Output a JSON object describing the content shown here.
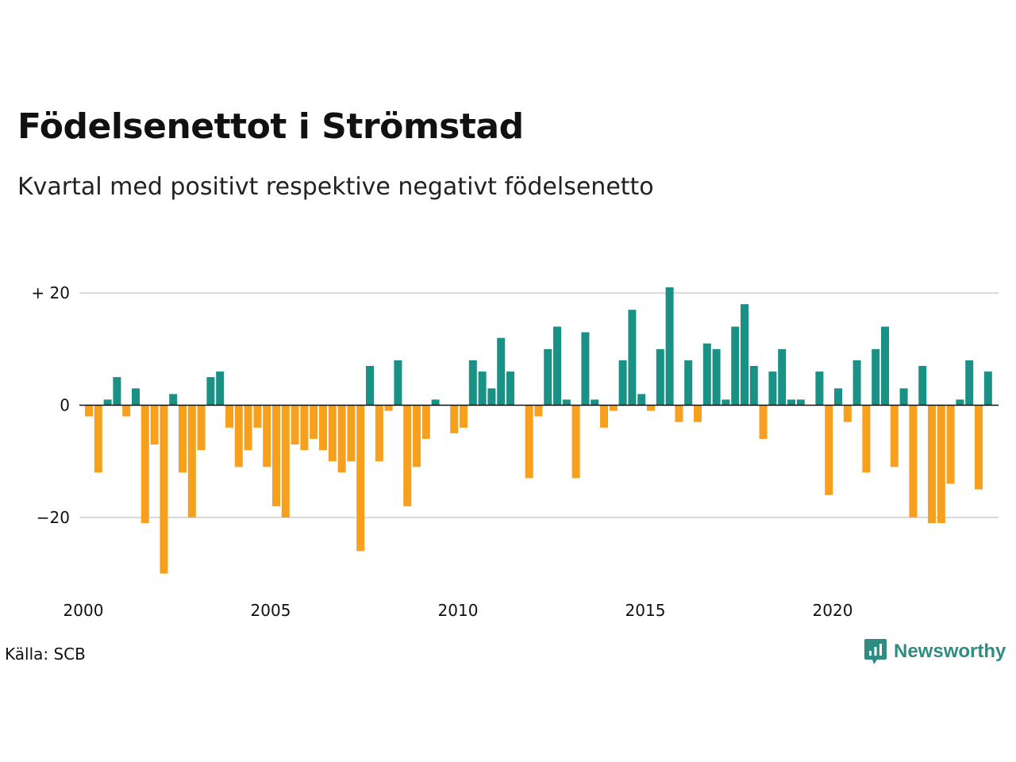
{
  "header": {
    "title": "Födelsenettot i Strömstad",
    "subtitle": "Kvartal med positivt respektive negativt födelsenetto"
  },
  "footer": {
    "source": "Källa: SCB",
    "brand": "Newsworthy",
    "brand_icon": "newsworthy-logo-icon"
  },
  "colors": {
    "positive": "#1a9185",
    "negative": "#f6a01d",
    "grid": "#d8d8d8",
    "zero_line": "#111111",
    "brand": "#2e8c82"
  },
  "chart_data": {
    "type": "bar",
    "title": "Födelsenettot i Strömstad",
    "subtitle": "Kvartal med positivt respektive negativt födelsenetto",
    "xlabel": "",
    "ylabel": "",
    "x_start": "2000-Q1",
    "x_ticks": [
      "2000",
      "2005",
      "2010",
      "2015",
      "2020"
    ],
    "y_ticks": [
      {
        "value": 20,
        "label": "+ 20"
      },
      {
        "value": 0,
        "label": "0"
      },
      {
        "value": -20,
        "label": "−20"
      }
    ],
    "ylim": [
      -30,
      21
    ],
    "grid": true,
    "legend": "none",
    "values": [
      -2,
      -12,
      1,
      5,
      -2,
      3,
      -21,
      -7,
      -30,
      2,
      -12,
      -20,
      -8,
      5,
      6,
      -4,
      -11,
      -8,
      -4,
      -11,
      -18,
      -20,
      -7,
      -8,
      -6,
      -8,
      -10,
      -12,
      -10,
      -26,
      7,
      -10,
      -1,
      8,
      -18,
      -11,
      -6,
      1,
      0,
      -5,
      -4,
      8,
      6,
      3,
      12,
      6,
      0,
      -13,
      -2,
      10,
      14,
      1,
      -13,
      13,
      1,
      -4,
      -1,
      8,
      17,
      2,
      -1,
      10,
      21,
      -3,
      8,
      -3,
      11,
      10,
      1,
      14,
      18,
      7,
      -6,
      6,
      10,
      1,
      1,
      0,
      6,
      -16,
      3,
      -3,
      8,
      -12,
      10,
      14,
      -11,
      3,
      -20,
      7,
      -21,
      -21,
      -14,
      1,
      8,
      -15,
      6
    ]
  }
}
